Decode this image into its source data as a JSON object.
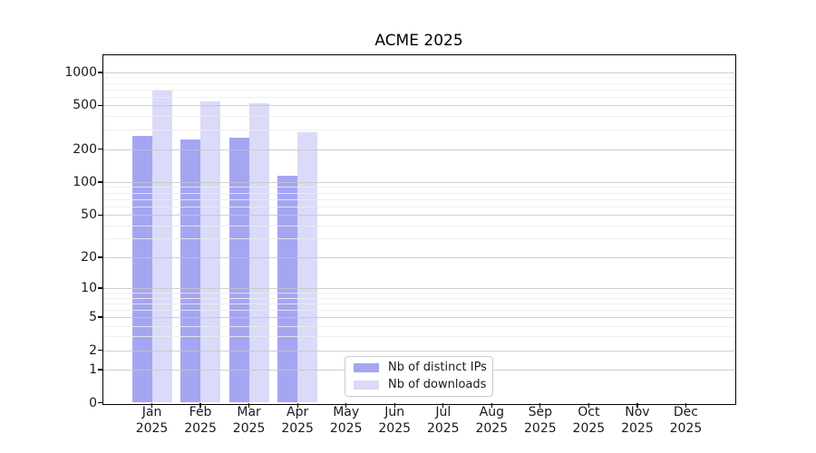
{
  "chart_data": {
    "type": "bar",
    "title": "ACME 2025",
    "categories": [
      "Jan",
      "Feb",
      "Mar",
      "Apr",
      "May",
      "Jun",
      "Jul",
      "Aug",
      "Sep",
      "Oct",
      "Nov",
      "Dec"
    ],
    "x_year_label": "2025",
    "series": [
      {
        "name": "Nb of distinct IPs",
        "color": "#a5a5f2",
        "values": [
          265,
          245,
          255,
          114,
          null,
          null,
          null,
          null,
          null,
          null,
          null,
          null
        ]
      },
      {
        "name": "Nb of downloads",
        "color": "#dadaf9",
        "values": [
          685,
          545,
          525,
          285,
          null,
          null,
          null,
          null,
          null,
          null,
          null,
          null
        ]
      }
    ],
    "yscale": "log1p",
    "yticks": [
      0,
      1,
      2,
      5,
      10,
      20,
      50,
      100,
      200,
      500,
      1000
    ],
    "yticks_minor": [
      3,
      4,
      6,
      7,
      8,
      9,
      30,
      40,
      60,
      70,
      80,
      90,
      300,
      400,
      600,
      700,
      800,
      900
    ],
    "ylim": [
      0,
      1432
    ],
    "grid": true,
    "grid_over_bars": true,
    "legend_position": "lower center",
    "colors": {
      "grid_major": "#c5c5c5",
      "grid_minor": "#ececec",
      "spine": "#000000",
      "text": "#1a1a1a"
    }
  },
  "legend": {
    "items": [
      {
        "label": "Nb of distinct IPs",
        "color": "#a5a5f2"
      },
      {
        "label": "Nb of downloads",
        "color": "#dadaf9"
      }
    ]
  }
}
